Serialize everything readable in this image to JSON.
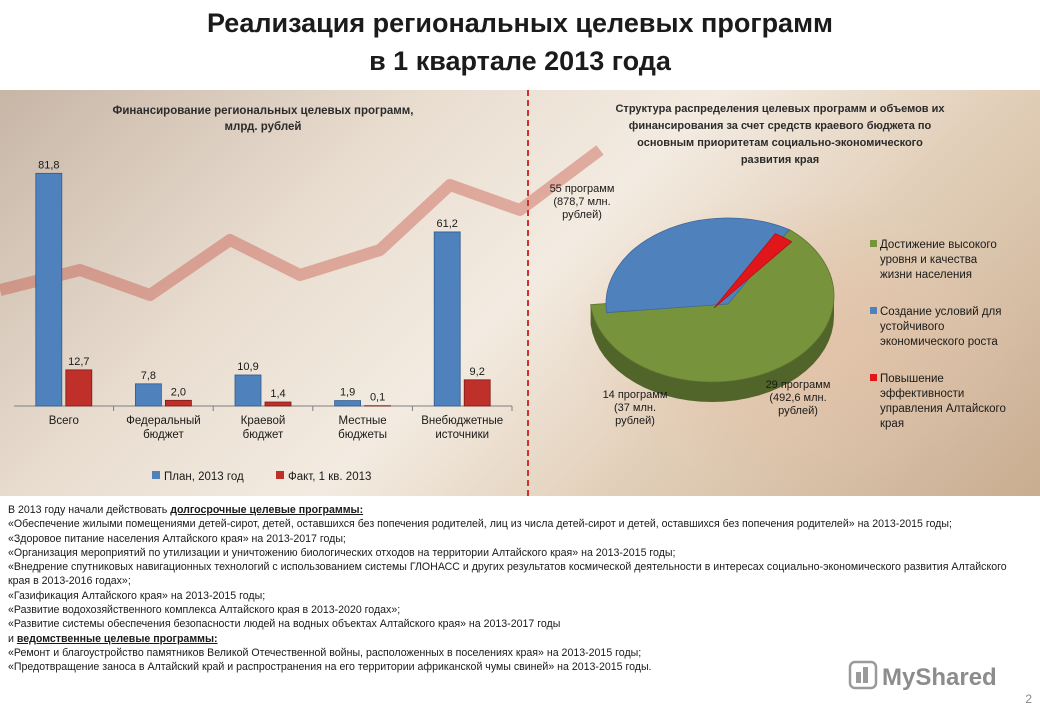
{
  "title": {
    "line1": "Реализация региональных целевых программ",
    "line2": "в 1 квартале 2013 года"
  },
  "chart_data": [
    {
      "type": "bar",
      "title": "Финансирование региональных целевых программ, млрд. рублей",
      "title_lines": [
        "Финансирование региональных целевых программ,",
        "млрд. рублей"
      ],
      "categories": [
        [
          "Всего"
        ],
        [
          "Федеральный",
          "бюджет"
        ],
        [
          "Краевой",
          "бюджет"
        ],
        [
          "Местные",
          "бюджеты"
        ],
        [
          "Внебюджетные",
          "источники"
        ]
      ],
      "series": [
        {
          "name": "План, 2013 год",
          "color": "#4f81bd",
          "values": [
            81.8,
            7.8,
            10.9,
            1.9,
            61.2
          ],
          "labels": [
            "81,8",
            "7,8",
            "10,9",
            "1,9",
            "61,2"
          ]
        },
        {
          "name": "Факт, 1 кв. 2013",
          "color": "#c0302b",
          "values": [
            12.7,
            2.0,
            1.4,
            0.1,
            9.2
          ],
          "labels": [
            "12,7",
            "2,0",
            "1,4",
            "0,1",
            "9,2"
          ]
        }
      ],
      "ylim": [
        0,
        90
      ],
      "grid": false,
      "legend_position": "bottom"
    },
    {
      "type": "pie",
      "title_lines": [
        "Структура распределения целевых программ и объемов их",
        "финансирования за счет средств краевого бюджета по",
        "основным приоритетам социально-экономического",
        "развития края"
      ],
      "slices": [
        {
          "name": [
            "Достижение высокого",
            "уровня и качества",
            "жизни населения"
          ],
          "value": 878.7,
          "color": "#77933c",
          "label": [
            "55 программ",
            "(878,7 млн.",
            "рублей)"
          ]
        },
        {
          "name": [
            "Создание условий для",
            "устойчивого",
            "экономического роста"
          ],
          "value": 492.6,
          "color": "#4f81bd",
          "label": [
            "29 программ",
            "(492,6 млн.",
            "рублей)"
          ]
        },
        {
          "name": [
            "Повышение",
            "эффективности",
            "управления Алтайского",
            "края"
          ],
          "value": 37,
          "color": "#e0161a",
          "label": [
            "14 программ",
            "(37 млн.",
            "рублей)"
          ]
        }
      ],
      "legend_position": "right"
    }
  ],
  "text": {
    "intro_prefix": "В 2013 году начали действовать ",
    "intro_link": "долгосрочные целевые программы:",
    "items": [
      "«Обеспечение жилыми помещениями детей-сирот, детей, оставшихся без попечения родителей, лиц из числа детей-сирот и детей, оставшихся без попечения родителей» на 2013-2015 годы;",
      "«Здоровое питание населения Алтайского края» на 2013-2017 годы;",
      "«Организация мероприятий по утилизации и уничтожению биологических отходов на территории Алтайского края» на 2013-2015 годы;",
      "«Внедрение спутниковых навигационных технологий с использованием системы ГЛОНАСС и других результатов космической деятельности в интересах социально-экономического развития Алтайского края в 2013-2016 годах»;",
      "«Газификация Алтайского края» на 2013-2015 годы;",
      "«Развитие водохозяйственного комплекса Алтайского края в 2013-2020 годах»;",
      "«Развитие системы обеспечения безопасности людей на водных объектах Алтайского края» на 2013-2017 годы"
    ],
    "dept_prefix": "и ",
    "dept_link": "ведомственные целевые программы:",
    "dept_items": [
      "«Ремонт и благоустройство памятников Великой Отечественной войны, расположенных в поселениях края» на 2013-2015 годы;",
      "«Предотвращение заноса в Алтайский край и распространения на его территории африканской чумы свиней» на 2013-2015 годы."
    ]
  },
  "watermark": {
    "text": "MyShared"
  },
  "page_number": "2"
}
